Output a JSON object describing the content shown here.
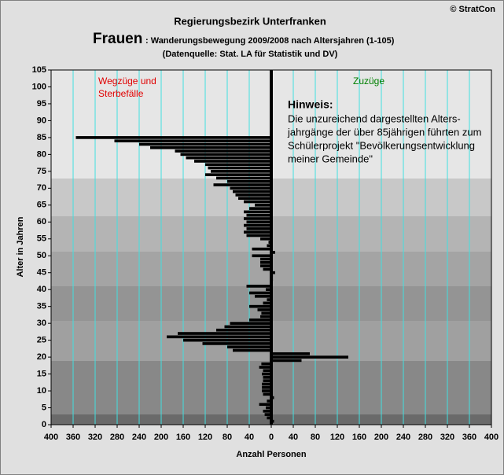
{
  "chart_data": {
    "type": "hbar",
    "copyright": "© StratCon",
    "supertitle": "Regierungsbezirk Unterfranken",
    "title_main": "Frauen",
    "title": ": Wanderungsbewegung 2009/2008 nach Altersjahren (1-105)",
    "subtitle": "(Datenquelle: Stat. LA für Statistik und DV)",
    "left_label": [
      "Wegzüge und",
      "Sterbefälle"
    ],
    "right_label": "Zuzüge",
    "note_title": "Hinweis:",
    "note_lines": [
      "Die unzureichend dargestellten Alters-",
      "jahrgänge der über 85jährigen führten zum",
      "Schülerprojekt \"Bevölkerungsentwicklung",
      "meiner Gemeinde\""
    ],
    "xlabel": "Anzahl Personen",
    "ylabel": "Alter in Jahren",
    "color": "#000000",
    "grid_color": "#40e0e0",
    "x": [
      1,
      2,
      3,
      4,
      5,
      6,
      7,
      8,
      9,
      10,
      11,
      12,
      13,
      14,
      15,
      16,
      17,
      18,
      19,
      20,
      21,
      22,
      23,
      24,
      25,
      26,
      27,
      28,
      29,
      30,
      31,
      32,
      33,
      34,
      35,
      36,
      37,
      38,
      39,
      40,
      41,
      42,
      43,
      44,
      45,
      46,
      47,
      48,
      49,
      50,
      51,
      52,
      53,
      54,
      55,
      56,
      57,
      58,
      59,
      60,
      61,
      62,
      63,
      64,
      65,
      66,
      67,
      68,
      69,
      70,
      71,
      72,
      73,
      74,
      75,
      76,
      77,
      78,
      79,
      80,
      81,
      82,
      83,
      84,
      85
    ],
    "values": [
      5,
      -8,
      -12,
      -15,
      -10,
      -22,
      -8,
      5,
      -15,
      -17,
      -17,
      -17,
      -15,
      -15,
      -17,
      -15,
      -22,
      -18,
      55,
      140,
      70,
      -70,
      -80,
      -125,
      -160,
      -190,
      -170,
      -100,
      -85,
      -75,
      -40,
      -20,
      -18,
      -25,
      -40,
      -15,
      -8,
      -30,
      -40,
      -10,
      -45,
      0,
      3,
      3,
      7,
      -15,
      -20,
      -20,
      -20,
      -35,
      7,
      -35,
      -8,
      -5,
      -20,
      -45,
      -50,
      -45,
      -50,
      -45,
      -50,
      -45,
      -50,
      -40,
      -30,
      -50,
      -60,
      -65,
      -70,
      -75,
      -105,
      -80,
      -100,
      -120,
      -110,
      -115,
      -120,
      -140,
      -155,
      -165,
      -175,
      -220,
      -240,
      -285,
      -355
    ],
    "xlim": [
      -400,
      400
    ],
    "xticks": [
      {
        "value": -400,
        "label": "400"
      },
      {
        "value": -360,
        "label": "360"
      },
      {
        "value": -320,
        "label": "320"
      },
      {
        "value": -280,
        "label": "280"
      },
      {
        "value": -240,
        "label": "240"
      },
      {
        "value": -200,
        "label": "200"
      },
      {
        "value": -160,
        "label": "160"
      },
      {
        "value": -120,
        "label": "120"
      },
      {
        "value": -80,
        "label": "80"
      },
      {
        "value": -40,
        "label": "40"
      },
      0,
      40,
      80,
      120,
      160,
      200,
      240,
      280,
      320,
      360,
      400
    ],
    "ylim": [
      0,
      105
    ],
    "yticks": [
      0,
      5,
      10,
      15,
      20,
      25,
      30,
      35,
      40,
      45,
      50,
      55,
      60,
      65,
      70,
      75,
      80,
      85,
      90,
      95,
      100,
      105
    ]
  }
}
